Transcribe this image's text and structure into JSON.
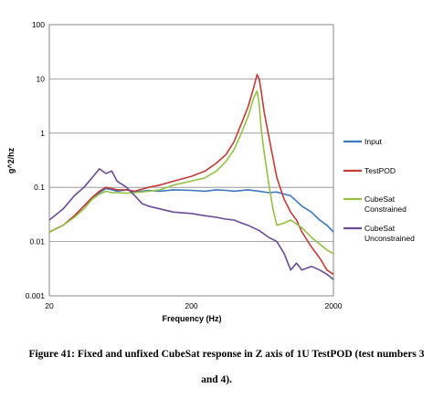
{
  "chart_data": {
    "type": "line",
    "title": "",
    "xlabel": "Frequency (Hz)",
    "ylabel": "g^2/hz",
    "xscale": "log",
    "yscale": "log",
    "xlim": [
      20,
      2000
    ],
    "ylim": [
      0.001,
      100
    ],
    "x_ticks": [
      "20",
      "200",
      "2000"
    ],
    "y_ticks": [
      "100",
      "10",
      "1",
      "0.1",
      "0.01",
      "0.001"
    ],
    "grid": "horizontal",
    "legend_position": "right",
    "series": [
      {
        "name": "Input",
        "color": "#3a78c2",
        "x": [
          20,
          25,
          30,
          35,
          40,
          45,
          50,
          55,
          60,
          70,
          80,
          100,
          120,
          150,
          200,
          250,
          300,
          350,
          400,
          500,
          600,
          700,
          800,
          900,
          1000,
          1200,
          1400,
          1600,
          1800,
          2000
        ],
        "y": [
          0.015,
          0.02,
          0.03,
          0.045,
          0.065,
          0.08,
          0.095,
          0.09,
          0.085,
          0.09,
          0.082,
          0.088,
          0.085,
          0.09,
          0.088,
          0.085,
          0.09,
          0.088,
          0.085,
          0.09,
          0.085,
          0.08,
          0.082,
          0.075,
          0.07,
          0.045,
          0.035,
          0.025,
          0.02,
          0.015
        ]
      },
      {
        "name": "TestPOD",
        "color": "#c33b36",
        "x": [
          20,
          25,
          30,
          35,
          40,
          45,
          50,
          55,
          60,
          70,
          80,
          100,
          120,
          150,
          200,
          250,
          300,
          350,
          400,
          450,
          500,
          550,
          580,
          600,
          620,
          650,
          700,
          750,
          800,
          900,
          1000,
          1100,
          1200,
          1400,
          1600,
          1800,
          2000
        ],
        "y": [
          0.015,
          0.02,
          0.03,
          0.045,
          0.065,
          0.085,
          0.1,
          0.095,
          0.09,
          0.09,
          0.085,
          0.1,
          0.11,
          0.13,
          0.16,
          0.2,
          0.28,
          0.4,
          0.7,
          1.5,
          3.0,
          7.0,
          12.0,
          10.0,
          6.0,
          2.5,
          0.9,
          0.35,
          0.15,
          0.06,
          0.035,
          0.025,
          0.015,
          0.008,
          0.005,
          0.003,
          0.0025
        ]
      },
      {
        "name": "CubeSat Constrained",
        "color": "#94c143",
        "x": [
          20,
          25,
          30,
          35,
          40,
          45,
          50,
          55,
          60,
          70,
          80,
          100,
          120,
          150,
          200,
          250,
          300,
          350,
          400,
          450,
          500,
          550,
          580,
          600,
          620,
          650,
          700,
          750,
          800,
          900,
          1000,
          1200,
          1400,
          1600,
          1800,
          2000
        ],
        "y": [
          0.015,
          0.02,
          0.028,
          0.04,
          0.06,
          0.075,
          0.085,
          0.08,
          0.08,
          0.078,
          0.08,
          0.085,
          0.09,
          0.11,
          0.13,
          0.15,
          0.2,
          0.3,
          0.5,
          1.0,
          2.0,
          4.5,
          6.0,
          3.5,
          1.2,
          0.45,
          0.12,
          0.04,
          0.02,
          0.022,
          0.025,
          0.018,
          0.012,
          0.009,
          0.007,
          0.006
        ]
      },
      {
        "name": "CubeSat Unconstrained",
        "color": "#6a4c98",
        "x": [
          20,
          25,
          30,
          35,
          40,
          45,
          50,
          55,
          60,
          70,
          80,
          90,
          100,
          120,
          150,
          200,
          250,
          300,
          350,
          400,
          450,
          500,
          600,
          700,
          800,
          900,
          1000,
          1100,
          1200,
          1400,
          1600,
          1800,
          2000
        ],
        "y": [
          0.025,
          0.04,
          0.07,
          0.1,
          0.15,
          0.22,
          0.18,
          0.2,
          0.13,
          0.1,
          0.07,
          0.05,
          0.045,
          0.04,
          0.035,
          0.033,
          0.03,
          0.028,
          0.026,
          0.025,
          0.022,
          0.02,
          0.016,
          0.012,
          0.01,
          0.006,
          0.003,
          0.004,
          0.003,
          0.0035,
          0.003,
          0.0025,
          0.002
        ]
      }
    ]
  },
  "legend": {
    "items": [
      {
        "label": "Input",
        "color": "#3a78c2"
      },
      {
        "label": "TestPOD",
        "color": "#c33b36"
      },
      {
        "label": "CubeSat",
        "label2": "Constrained",
        "color": "#94c143"
      },
      {
        "label": "CubeSat",
        "label2": "Unconstrained",
        "color": "#6a4c98"
      }
    ]
  },
  "caption": {
    "line1": "Figure 41: Fixed and unfixed CubeSat response in Z axis of 1U TestPOD (test numbers 3",
    "line2": "and 4)."
  }
}
